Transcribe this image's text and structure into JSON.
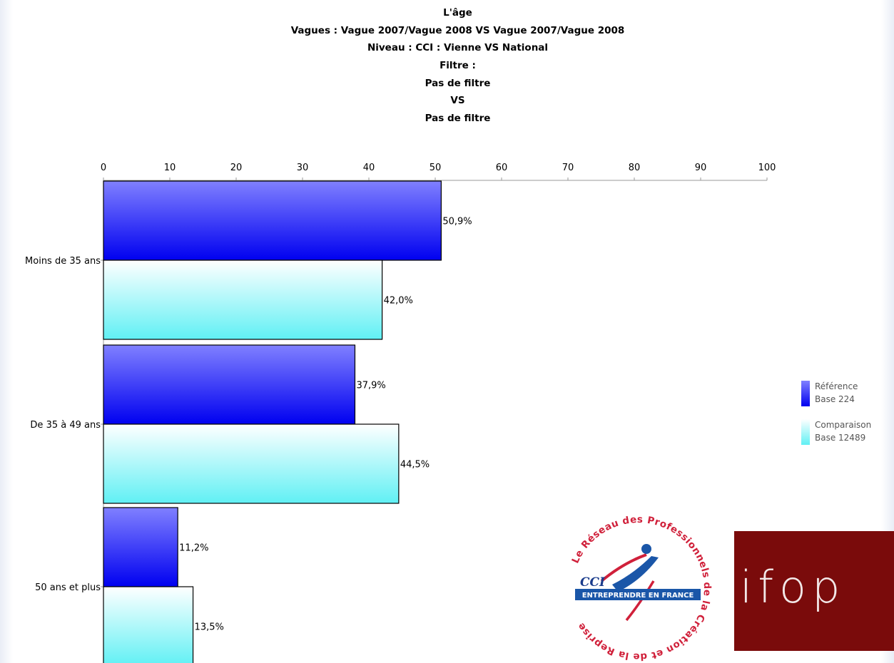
{
  "titles": {
    "t1": "L'âge",
    "t2": "Vagues : Vague 2007/Vague 2008 VS Vague 2007/Vague 2008",
    "t3": "Niveau :  CCI : Vienne VS National",
    "t4": "Filtre :",
    "t5": "Pas de filtre",
    "t6": "VS",
    "t7": "Pas de filtre"
  },
  "legend": {
    "ref_label": "Référence",
    "ref_base": "Base 224",
    "comp_label": "Comparaison",
    "comp_base": "Base 12489"
  },
  "logos": {
    "cci_ring": "Le Réseau des Professionnels de la Création et de la Reprise",
    "cci_mark": "CCI",
    "cci_banner": "ENTREPRENDRE EN FRANCE",
    "ifop_text": "ifop"
  },
  "chart_data": {
    "type": "bar",
    "orientation": "horizontal",
    "categories": [
      "Moins de 35 ans",
      "De 35 à 49 ans",
      "50 ans et plus"
    ],
    "series": [
      {
        "name": "Référence",
        "values": [
          50.9,
          37.9,
          11.2
        ],
        "labels": [
          "50,9%",
          "37,9%",
          "11,2%"
        ]
      },
      {
        "name": "Comparaison",
        "values": [
          42.0,
          44.5,
          13.5
        ],
        "labels": [
          "42,0%",
          "44,5%",
          "13,5%"
        ]
      }
    ],
    "xlim": [
      0,
      100
    ],
    "xticks": [
      0,
      10,
      20,
      30,
      40,
      50,
      60,
      70,
      80,
      90,
      100
    ],
    "axis_position": "top",
    "legend_position": "right",
    "colors": {
      "reference": "#0000f0",
      "reference_light": "#8080ff",
      "comparison": "#60f0f4",
      "comparison_light": "#ffffff"
    }
  }
}
